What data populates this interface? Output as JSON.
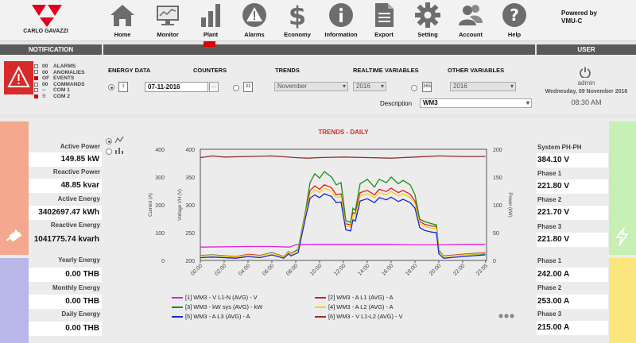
{
  "header": {
    "logo_text": "CARLO GAVAZZI",
    "powered_line1": "Powered by",
    "powered_line2": "VMU-C",
    "nav": [
      {
        "label": "Home",
        "icon": "home-icon"
      },
      {
        "label": "Monitor",
        "icon": "monitor-icon"
      },
      {
        "label": "Plant",
        "icon": "plant-icon"
      },
      {
        "label": "Alarms",
        "icon": "alarm-icon"
      },
      {
        "label": "Economy",
        "icon": "dollar-icon"
      },
      {
        "label": "Information",
        "icon": "info-icon"
      },
      {
        "label": "Export",
        "icon": "export-icon"
      },
      {
        "label": "Setting",
        "icon": "gear-icon"
      },
      {
        "label": "Account",
        "icon": "account-icon"
      },
      {
        "label": "Help",
        "icon": "help-icon"
      }
    ],
    "notification_title": "NOTIFICATION",
    "user_title": "USER"
  },
  "notifications": [
    {
      "count": "00",
      "label": "ALARMS",
      "active": false
    },
    {
      "count": "00",
      "label": "ANOMALIES",
      "active": false
    },
    {
      "count": "OF",
      "label": "EVENTS",
      "active": true
    },
    {
      "count": "00",
      "label": "COMMANDS",
      "active": false
    },
    {
      "count": "--",
      "label": "COM 1",
      "active": false
    },
    {
      "count": "!!",
      "label": "COM 2",
      "active": true
    }
  ],
  "controls": {
    "energy_data": "ENERGY DATA",
    "counters": "COUNTERS",
    "trends": "TRENDS",
    "realtime": "REALTIME VARIABLES",
    "other": "OTHER VARIABLES",
    "date_value": "07-11-2016",
    "browse": "...",
    "cal1": "1",
    "cal31": "31",
    "cal365": "365",
    "month_value": "November",
    "year1_value": "2016",
    "year2_value": "2016",
    "description_label": "Description",
    "description_value": "WM3"
  },
  "user": {
    "name": "admin",
    "date": "Wednesday, 09 November 2016",
    "time": "08:30 AM"
  },
  "left": {
    "items": [
      {
        "label": "Active Power",
        "value": "149.85 kW"
      },
      {
        "label": "Reactive Power",
        "value": "48.85 kvar"
      },
      {
        "label": "Active Energy",
        "value": "3402697.47 kWh"
      },
      {
        "label": "Reactive Energy",
        "value": "1041775.74 kvarh"
      },
      {
        "label": "Yearly Energy",
        "value": "0.00 THB"
      },
      {
        "label": "Monthly Energy",
        "value": "0.00 THB"
      },
      {
        "label": "Daily Energy",
        "value": "0.00 THB"
      }
    ],
    "colors": {
      "orange": "#f4a98e",
      "purple": "#b9b6e8"
    }
  },
  "right": {
    "items": [
      {
        "label": "System PH-PH",
        "value": "384.10 V"
      },
      {
        "label": "Phase 1",
        "value": "221.80 V"
      },
      {
        "label": "Phase 2",
        "value": "221.70 V"
      },
      {
        "label": "Phase 3",
        "value": "221.80 V"
      },
      {
        "label": "Phase 1",
        "value": "242.00 A"
      },
      {
        "label": "Phase 2",
        "value": "253.00 A"
      },
      {
        "label": "Phase 3",
        "value": "215.00 A"
      }
    ],
    "colors": {
      "green": "#c6f0b4",
      "yellow": "#fbe57d"
    }
  },
  "chart_data": {
    "type": "line",
    "title": "TRENDS - DAILY",
    "y_left_label": "Current (A)",
    "y_left_ticks": [
      "400",
      "300",
      "200",
      "100",
      "0"
    ],
    "y_mid_label": "Voltage VH (V)",
    "y_mid_ticks": [
      "400",
      "350",
      "300",
      "250",
      "200"
    ],
    "y_right_label": "Power (kW)",
    "y_right_ticks": [
      "200",
      "150",
      "100",
      "50",
      "0"
    ],
    "x_ticks": [
      "00:00",
      "02:00",
      "04:00",
      "06:00",
      "08:00",
      "10:00",
      "12:00",
      "14:00",
      "16:00",
      "18:00",
      "20:00",
      "22:00",
      "23:55"
    ],
    "x_hours": [
      0,
      2,
      4,
      6,
      8,
      10,
      12,
      14,
      16,
      18,
      20,
      22,
      23.917
    ],
    "x_max_hours": 24,
    "y_left_range": [
      0,
      400
    ],
    "series": [
      {
        "name": "[1] WM3 - V L1-N (AVG) - V",
        "color": "#e020e0",
        "axis": "voltage",
        "points": [
          [
            0,
            224
          ],
          [
            4,
            225
          ],
          [
            6,
            225
          ],
          [
            7.5,
            224
          ],
          [
            8,
            228
          ],
          [
            9,
            229
          ],
          [
            12,
            229
          ],
          [
            14,
            229
          ],
          [
            16,
            229
          ],
          [
            18,
            228
          ],
          [
            20,
            228
          ],
          [
            22,
            229
          ],
          [
            23.9,
            229
          ]
        ]
      },
      {
        "name": "[2] WM3 - A L1 (AVG) - A",
        "color": "#e31b1b",
        "axis": "current",
        "points": [
          [
            0,
            18
          ],
          [
            1,
            20
          ],
          [
            3,
            14
          ],
          [
            4,
            22
          ],
          [
            5,
            18
          ],
          [
            6,
            28
          ],
          [
            7,
            14
          ],
          [
            7.4,
            32
          ],
          [
            7.6,
            25
          ],
          [
            8.2,
            40
          ],
          [
            8.8,
            172
          ],
          [
            9.2,
            252
          ],
          [
            9.6,
            268
          ],
          [
            10,
            256
          ],
          [
            10.4,
            272
          ],
          [
            11,
            262
          ],
          [
            11.4,
            236
          ],
          [
            11.8,
            240
          ],
          [
            12.2,
            132
          ],
          [
            12.6,
            128
          ],
          [
            12.8,
            172
          ],
          [
            13,
            168
          ],
          [
            13.4,
            244
          ],
          [
            14,
            252
          ],
          [
            14.6,
            236
          ],
          [
            15,
            256
          ],
          [
            15.6,
            248
          ],
          [
            16,
            260
          ],
          [
            16.6,
            244
          ],
          [
            17,
            252
          ],
          [
            17.6,
            238
          ],
          [
            18,
            214
          ],
          [
            18.4,
            140
          ],
          [
            18.8,
            130
          ],
          [
            19.4,
            124
          ],
          [
            19.8,
            122
          ],
          [
            20,
            36
          ],
          [
            20.4,
            16
          ],
          [
            22,
            22
          ],
          [
            23.9,
            28
          ]
        ]
      },
      {
        "name": "[3] WM3 - kW sys (AVG) - kW",
        "color": "#1c8f12",
        "axis": "power",
        "points": [
          [
            0,
            8
          ],
          [
            1,
            10
          ],
          [
            3,
            6
          ],
          [
            4,
            10
          ],
          [
            5,
            8
          ],
          [
            6,
            14
          ],
          [
            7,
            6
          ],
          [
            7.4,
            16
          ],
          [
            7.6,
            11
          ],
          [
            8.2,
            20
          ],
          [
            8.8,
            86
          ],
          [
            9.2,
            140
          ],
          [
            9.6,
            156
          ],
          [
            10,
            148
          ],
          [
            10.4,
            160
          ],
          [
            11,
            150
          ],
          [
            11.4,
            136
          ],
          [
            11.8,
            140
          ],
          [
            12.2,
            72
          ],
          [
            12.6,
            68
          ],
          [
            12.8,
            94
          ],
          [
            13,
            90
          ],
          [
            13.4,
            138
          ],
          [
            14,
            146
          ],
          [
            14.6,
            132
          ],
          [
            15,
            146
          ],
          [
            15.6,
            140
          ],
          [
            16,
            150
          ],
          [
            16.6,
            138
          ],
          [
            17,
            144
          ],
          [
            17.6,
            136
          ],
          [
            18,
            118
          ],
          [
            18.4,
            74
          ],
          [
            18.8,
            70
          ],
          [
            19.4,
            66
          ],
          [
            19.8,
            64
          ],
          [
            20,
            18
          ],
          [
            20.4,
            8
          ],
          [
            22,
            10
          ],
          [
            23.9,
            12
          ]
        ]
      },
      {
        "name": "[4] WM3 - A L2 (AVG) - A",
        "color": "#f2d21a",
        "axis": "current",
        "points": [
          [
            0,
            16
          ],
          [
            1,
            18
          ],
          [
            3,
            12
          ],
          [
            4,
            20
          ],
          [
            5,
            16
          ],
          [
            6,
            26
          ],
          [
            7,
            12
          ],
          [
            7.4,
            30
          ],
          [
            7.6,
            22
          ],
          [
            8.2,
            36
          ],
          [
            8.8,
            162
          ],
          [
            9.2,
            238
          ],
          [
            9.6,
            254
          ],
          [
            10,
            244
          ],
          [
            10.4,
            260
          ],
          [
            11,
            250
          ],
          [
            11.4,
            226
          ],
          [
            11.8,
            230
          ],
          [
            12.2,
            124
          ],
          [
            12.6,
            120
          ],
          [
            12.8,
            162
          ],
          [
            13,
            158
          ],
          [
            13.4,
            232
          ],
          [
            14,
            240
          ],
          [
            14.6,
            226
          ],
          [
            15,
            244
          ],
          [
            15.6,
            236
          ],
          [
            16,
            248
          ],
          [
            16.6,
            232
          ],
          [
            17,
            240
          ],
          [
            17.6,
            226
          ],
          [
            18,
            204
          ],
          [
            18.4,
            132
          ],
          [
            18.8,
            122
          ],
          [
            19.4,
            116
          ],
          [
            19.8,
            114
          ],
          [
            20,
            32
          ],
          [
            20.4,
            14
          ],
          [
            22,
            20
          ],
          [
            23.9,
            26
          ]
        ]
      },
      {
        "name": "[5] WM3 - A L3 (AVG) - A",
        "color": "#1a22d8",
        "axis": "current",
        "points": [
          [
            0,
            10
          ],
          [
            1,
            12
          ],
          [
            3,
            8
          ],
          [
            4,
            14
          ],
          [
            5,
            10
          ],
          [
            6,
            20
          ],
          [
            7,
            8
          ],
          [
            7.4,
            24
          ],
          [
            7.6,
            16
          ],
          [
            8.2,
            28
          ],
          [
            8.8,
            150
          ],
          [
            9.2,
            224
          ],
          [
            9.6,
            236
          ],
          [
            10,
            226
          ],
          [
            10.4,
            240
          ],
          [
            11,
            230
          ],
          [
            11.4,
            208
          ],
          [
            11.8,
            210
          ],
          [
            12.2,
            110
          ],
          [
            12.6,
            106
          ],
          [
            12.8,
            146
          ],
          [
            13,
            142
          ],
          [
            13.4,
            214
          ],
          [
            14,
            222
          ],
          [
            14.6,
            208
          ],
          [
            15,
            226
          ],
          [
            15.6,
            218
          ],
          [
            16,
            228
          ],
          [
            16.6,
            212
          ],
          [
            17,
            220
          ],
          [
            17.6,
            208
          ],
          [
            18,
            188
          ],
          [
            18.4,
            118
          ],
          [
            18.8,
            108
          ],
          [
            19.4,
            102
          ],
          [
            19.8,
            100
          ],
          [
            20,
            24
          ],
          [
            20.4,
            8
          ],
          [
            22,
            14
          ],
          [
            23.9,
            20
          ]
        ]
      },
      {
        "name": "[6] WM3 - V L1-L2 (AVG) - V",
        "color": "#9a2a2a",
        "axis": "voltage",
        "points": [
          [
            0,
            385
          ],
          [
            1,
            388
          ],
          [
            2,
            386
          ],
          [
            4,
            387
          ],
          [
            6,
            388
          ],
          [
            8,
            385
          ],
          [
            9,
            384
          ],
          [
            10,
            385
          ],
          [
            12,
            386
          ],
          [
            14,
            385
          ],
          [
            16,
            384
          ],
          [
            18,
            386
          ],
          [
            20,
            388
          ],
          [
            22,
            387
          ],
          [
            23.9,
            387
          ]
        ]
      }
    ]
  }
}
